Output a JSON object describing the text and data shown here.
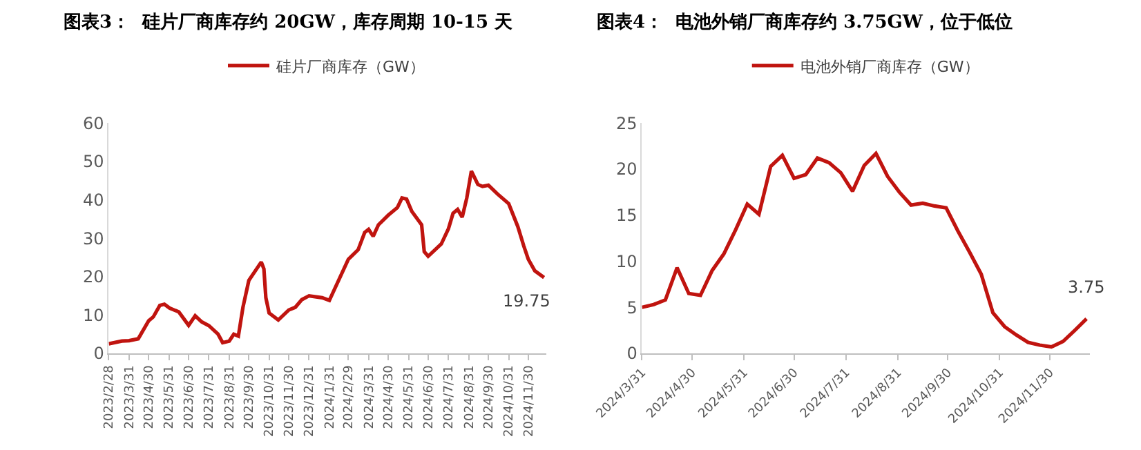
{
  "chart_data": [
    {
      "type": "line",
      "title": "图表3：  硅片厂商库存约 20GW，库存周期 10-15 天",
      "x": [
        "2023-02-28",
        "2023-03-20",
        "2023-03-31",
        "2023-04-14",
        "2023-04-30",
        "2023-05-07",
        "2023-05-17",
        "2023-05-24",
        "2023-06-01",
        "2023-06-15",
        "2023-06-30",
        "2023-07-10",
        "2023-07-20",
        "2023-07-31",
        "2023-08-14",
        "2023-08-21",
        "2023-08-31",
        "2023-09-07",
        "2023-09-14",
        "2023-09-21",
        "2023-09-30",
        "2023-10-19",
        "2023-10-23",
        "2023-10-26",
        "2023-10-31",
        "2023-11-14",
        "2023-11-30",
        "2023-12-10",
        "2023-12-20",
        "2023-12-31",
        "2024-01-20",
        "2024-01-31",
        "2024-02-29",
        "2024-03-15",
        "2024-03-25",
        "2024-03-31",
        "2024-04-07",
        "2024-04-15",
        "2024-04-30",
        "2024-05-14",
        "2024-05-21",
        "2024-05-28",
        "2024-06-05",
        "2024-06-20",
        "2024-06-24",
        "2024-06-30",
        "2024-07-20",
        "2024-07-31",
        "2024-08-07",
        "2024-08-14",
        "2024-08-21",
        "2024-08-28",
        "2024-09-04",
        "2024-09-14",
        "2024-09-21",
        "2024-09-30",
        "2024-10-14",
        "2024-10-31",
        "2024-11-14",
        "2024-11-23",
        "2024-11-30",
        "2024-12-10",
        "2024-12-24"
      ],
      "series": [
        {
          "name": "硅片厂商库存（GW）",
          "color": "#c0140f",
          "values": [
            2.5,
            3.2,
            3.3,
            3.8,
            8.5,
            9.5,
            12.5,
            12.8,
            11.8,
            10.8,
            7.3,
            9.8,
            8.2,
            7.2,
            5.0,
            2.8,
            3.2,
            5.0,
            4.5,
            12.0,
            19.0,
            23.8,
            22.0,
            14.5,
            10.5,
            8.7,
            11.3,
            12.0,
            14.0,
            15.0,
            14.5,
            13.8,
            24.5,
            27,
            31.5,
            32.3,
            30.5,
            33.5,
            36,
            38,
            40.5,
            40.2,
            37,
            33.5,
            26.5,
            25.3,
            28.5,
            32.5,
            36.5,
            37.5,
            35.5,
            40.5,
            47.5,
            44,
            43.5,
            43.8,
            41.5,
            39,
            33,
            28,
            24.5,
            21.5,
            19.75
          ]
        }
      ],
      "xlim": [
        "2023-02-28",
        "2024-12-27"
      ],
      "xticks": [
        {
          "value": "2023-02-28",
          "label": "2023/2/28"
        },
        {
          "value": "2023-03-31",
          "label": "2023/3/31"
        },
        {
          "value": "2023-04-30",
          "label": "2023/4/30"
        },
        {
          "value": "2023-05-31",
          "label": "2023/5/31"
        },
        {
          "value": "2023-06-30",
          "label": "2023/6/30"
        },
        {
          "value": "2023-07-31",
          "label": "2023/7/31"
        },
        {
          "value": "2023-08-31",
          "label": "2023/8/31"
        },
        {
          "value": "2023-09-30",
          "label": "2023/9/30"
        },
        {
          "value": "2023-10-31",
          "label": "2023/10/31"
        },
        {
          "value": "2023-11-30",
          "label": "2023/11/30"
        },
        {
          "value": "2023-12-31",
          "label": "2023/12/31"
        },
        {
          "value": "2024-01-31",
          "label": "2024/1/31"
        },
        {
          "value": "2024-02-29",
          "label": "2024/2/29"
        },
        {
          "value": "2024-03-31",
          "label": "2024/3/31"
        },
        {
          "value": "2024-04-30",
          "label": "2024/4/30"
        },
        {
          "value": "2024-05-31",
          "label": "2024/5/31"
        },
        {
          "value": "2024-06-30",
          "label": "2024/6/30"
        },
        {
          "value": "2024-07-31",
          "label": "2024/7/31"
        },
        {
          "value": "2024-08-31",
          "label": "2024/8/31"
        },
        {
          "value": "2024-09-30",
          "label": "2024/9/30"
        },
        {
          "value": "2024-10-31",
          "label": "2024/10/31"
        },
        {
          "value": "2024-11-30",
          "label": "2024/11/30"
        }
      ],
      "ylim": [
        0,
        60
      ],
      "yticks": [
        0,
        10,
        20,
        30,
        40,
        50,
        60
      ],
      "annotations": [
        {
          "text": "19.75",
          "x": "2024-12-24",
          "y": 19.75
        }
      ],
      "legend": "top",
      "grid": false,
      "marker": "none",
      "line_style": "solid"
    },
    {
      "type": "line",
      "title": "图表4：  电池外销厂商库存约 3.75GW，位于低位",
      "x": [
        "2024-03-31",
        "2024-04-07",
        "2024-04-14",
        "2024-04-21",
        "2024-04-28",
        "2024-05-05",
        "2024-05-12",
        "2024-05-19",
        "2024-05-26",
        "2024-06-02",
        "2024-06-09",
        "2024-06-16",
        "2024-06-23",
        "2024-06-30",
        "2024-07-07",
        "2024-07-14",
        "2024-07-21",
        "2024-07-28",
        "2024-08-04",
        "2024-08-11",
        "2024-08-18",
        "2024-08-25",
        "2024-09-01",
        "2024-09-08",
        "2024-09-15",
        "2024-09-22",
        "2024-09-29",
        "2024-10-06",
        "2024-10-13",
        "2024-10-20",
        "2024-10-27",
        "2024-11-03",
        "2024-11-10",
        "2024-11-17",
        "2024-11-24",
        "2024-12-01",
        "2024-12-08",
        "2024-12-15",
        "2024-12-22"
      ],
      "series": [
        {
          "name": "电池外销厂商库存（GW）",
          "color": "#c0140f",
          "values": [
            5.0,
            5.3,
            5.8,
            9.3,
            6.5,
            6.3,
            9.0,
            10.8,
            13.4,
            16.2,
            15.1,
            20.3,
            21.5,
            19.0,
            19.4,
            21.2,
            20.7,
            19.6,
            17.6,
            20.4,
            21.7,
            19.2,
            17.5,
            16.1,
            16.3,
            16.0,
            15.8,
            13.3,
            11.0,
            8.6,
            4.4,
            2.9,
            2.0,
            1.2,
            0.9,
            0.7,
            1.3,
            2.5,
            3.75
          ]
        }
      ],
      "xlim": [
        "2024-03-31",
        "2024-12-24"
      ],
      "xticks": [
        {
          "value": "2024-03-31",
          "label": "2024/3/31"
        },
        {
          "value": "2024-04-30",
          "label": "2024/4/30"
        },
        {
          "value": "2024-05-31",
          "label": "2024/5/31"
        },
        {
          "value": "2024-06-30",
          "label": "2024/6/30"
        },
        {
          "value": "2024-07-31",
          "label": "2024/7/31"
        },
        {
          "value": "2024-08-31",
          "label": "2024/8/31"
        },
        {
          "value": "2024-09-30",
          "label": "2024/9/30"
        },
        {
          "value": "2024-10-31",
          "label": "2024/10/31"
        },
        {
          "value": "2024-11-30",
          "label": "2024/11/30"
        }
      ],
      "ylim": [
        0,
        25
      ],
      "yticks": [
        0,
        5,
        10,
        15,
        20,
        25
      ],
      "annotations": [
        {
          "text": "3.75",
          "x": "2024-12-22",
          "y": 3.75
        }
      ],
      "legend": "top",
      "grid": false,
      "marker": "none",
      "line_style": "solid"
    }
  ]
}
